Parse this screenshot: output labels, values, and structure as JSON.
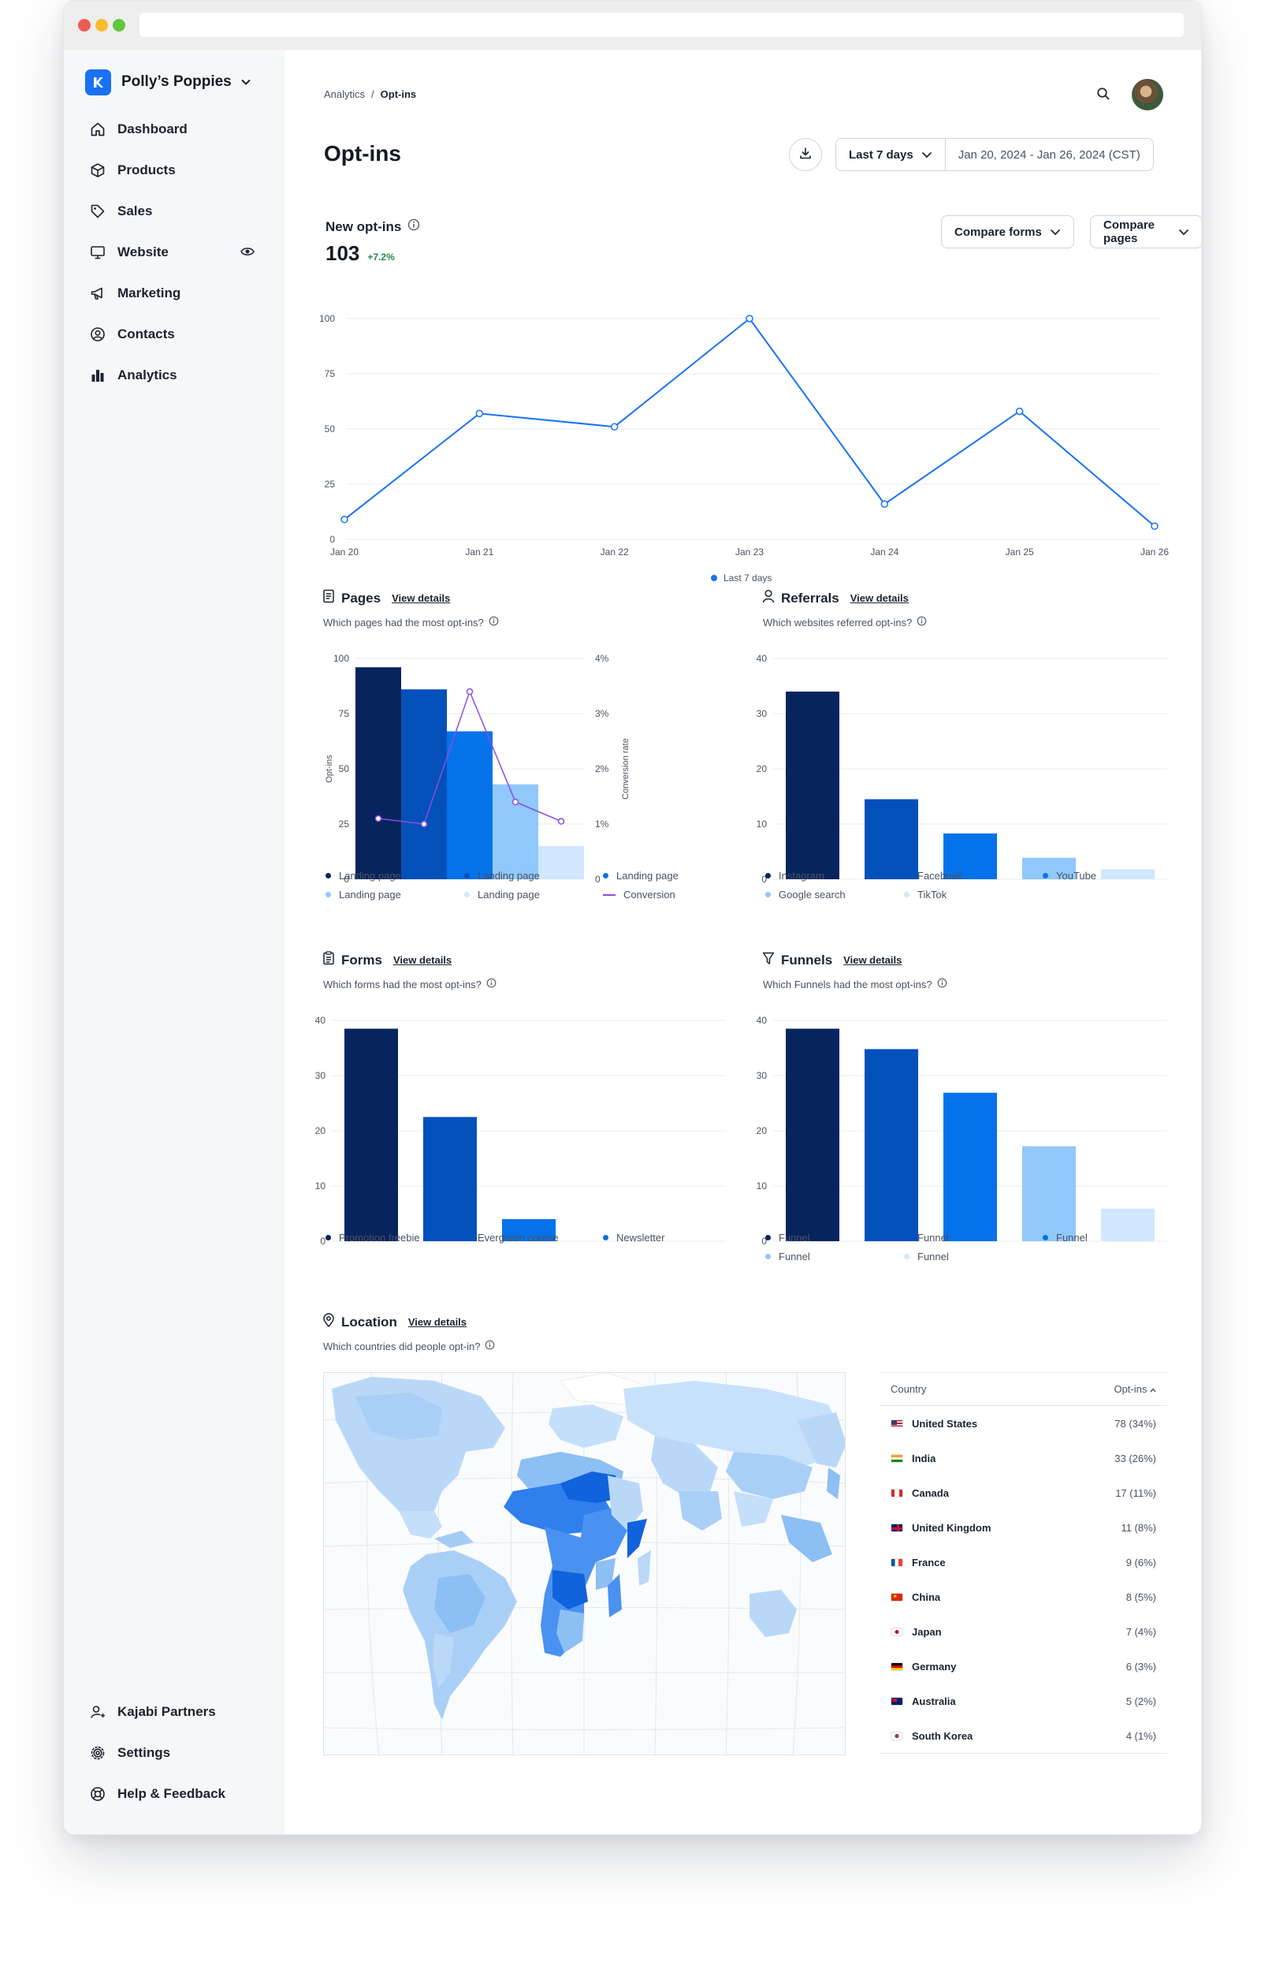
{
  "sidebar": {
    "brand": "Polly’s Poppies",
    "nav": [
      {
        "label": "Dashboard",
        "icon": "home-icon"
      },
      {
        "label": "Products",
        "icon": "box-icon"
      },
      {
        "label": "Sales",
        "icon": "tag-icon"
      },
      {
        "label": "Website",
        "icon": "monitor-icon"
      },
      {
        "label": "Marketing",
        "icon": "megaphone-icon"
      },
      {
        "label": "Contacts",
        "icon": "contact-icon"
      },
      {
        "label": "Analytics",
        "icon": "bar-chart-icon"
      }
    ],
    "bottom": [
      {
        "label": "Kajabi Partners",
        "icon": "partner-icon"
      },
      {
        "label": "Settings",
        "icon": "gear-icon"
      },
      {
        "label": "Help & Feedback",
        "icon": "lifebuoy-icon"
      }
    ]
  },
  "breadcrumb": {
    "parent": "Analytics",
    "sep": "/",
    "current": "Opt-ins"
  },
  "page": {
    "title": "Opt-ins"
  },
  "toolbar": {
    "range_label": "Last 7 days",
    "dates": "Jan 20, 2024 - Jan 26, 2024 (CST)",
    "compare_forms": "Compare forms",
    "compare_pages": "Compare pages"
  },
  "kpi": {
    "title": "New opt-ins",
    "value": "103",
    "change": "+7.2%"
  },
  "colors": {
    "navy": "#07245e",
    "royal": "#0450bb",
    "blue": "#0672ea",
    "light": "#90c8fb",
    "pale": "#d0e7fd",
    "purple": "#8a4ee0",
    "accent": "#1971f5",
    "positive": "#22884c"
  },
  "sections": {
    "pages": {
      "title": "Pages",
      "view": "View details",
      "subtitle": "Which pages had the most opt-ins?"
    },
    "referrals": {
      "title": "Referrals",
      "view": "View details",
      "subtitle": "Which websites referred opt-ins?"
    },
    "forms": {
      "title": "Forms",
      "view": "View details",
      "subtitle": "Which forms had the most opt-ins?"
    },
    "funnels": {
      "title": "Funnels",
      "view": "View details",
      "subtitle": "Which Funnels had the most opt-ins?"
    },
    "location": {
      "title": "Location",
      "view": "View details",
      "subtitle": "Which countries did people opt-in?"
    }
  },
  "chart_data": [
    {
      "id": "new-optins",
      "type": "line",
      "categories": [
        "Jan 20",
        "Jan 21",
        "Jan 22",
        "Jan 23",
        "Jan 24",
        "Jan 25",
        "Jan 26"
      ],
      "series": [
        {
          "name": "Last 7 days",
          "values": [
            9,
            57,
            51,
            100,
            16,
            58,
            6
          ]
        }
      ],
      "ylim": [
        0,
        100
      ],
      "yticks": [
        0,
        25,
        50,
        75,
        100
      ],
      "grid": true,
      "legend": "bottom-center"
    },
    {
      "id": "pages",
      "type": "bar",
      "categories": [
        "Landing page",
        "Landing page",
        "Landing page",
        "Landing page",
        "Landing page"
      ],
      "values": [
        96,
        86,
        67,
        43,
        15
      ],
      "ylabel": "Opt-ins",
      "ylim": [
        0,
        100
      ],
      "yticks": [
        0,
        25,
        50,
        75,
        100
      ],
      "secondary": {
        "name": "Conversion",
        "ylabel": "Conversion rate",
        "values": [
          1.1,
          1.0,
          3.4,
          1.4,
          1.05
        ],
        "ylim": [
          0,
          4
        ],
        "yticks": [
          "0",
          "1%",
          "2%",
          "3%",
          "4%"
        ]
      },
      "legend": [
        {
          "label": "Landing page",
          "kind": "dot"
        },
        {
          "label": "Landing page",
          "kind": "dot"
        },
        {
          "label": "Landing page",
          "kind": "dot"
        },
        {
          "label": "Landing page",
          "kind": "dot"
        },
        {
          "label": "Landing page",
          "kind": "dot"
        },
        {
          "label": "Conversion",
          "kind": "line"
        }
      ]
    },
    {
      "id": "referrals",
      "type": "bar",
      "categories": [
        "Instagram",
        "Facebook",
        "YouTube",
        "Google search",
        "TikTok"
      ],
      "values": [
        34,
        14.5,
        8.3,
        3.9,
        1.8
      ],
      "ylim": [
        0,
        40
      ],
      "yticks": [
        0,
        10,
        20,
        30,
        40
      ],
      "legend": [
        {
          "label": "Instagram"
        },
        {
          "label": "Facebook"
        },
        {
          "label": "YouTube"
        },
        {
          "label": "Google search"
        },
        {
          "label": "TikTok"
        }
      ]
    },
    {
      "id": "forms",
      "type": "bar",
      "categories": [
        "Promotion freebie",
        "Evergreen course",
        "Newsletter"
      ],
      "values": [
        38.5,
        22.5,
        4
      ],
      "ylim": [
        0,
        40
      ],
      "yticks": [
        0,
        10,
        20,
        30,
        40
      ],
      "legend": [
        {
          "label": "Promotion freebie"
        },
        {
          "label": "Evergreen course"
        },
        {
          "label": "Newsletter"
        }
      ]
    },
    {
      "id": "funnels",
      "type": "bar",
      "categories": [
        "Funnel",
        "Funnel",
        "Funnel",
        "Funnel",
        "Funnel"
      ],
      "values": [
        38.5,
        34.8,
        26.9,
        17.2,
        5.9
      ],
      "ylim": [
        0,
        40
      ],
      "yticks": [
        0,
        10,
        20,
        30,
        40
      ],
      "legend": [
        {
          "label": "Funnel"
        },
        {
          "label": "Funnel"
        },
        {
          "label": "Funnel"
        },
        {
          "label": "Funnel"
        },
        {
          "label": "Funnel"
        }
      ]
    },
    {
      "id": "location",
      "type": "table",
      "columns": [
        "Country",
        "Opt-ins"
      ],
      "rows": [
        {
          "country": "United States",
          "value": "78 (34%)",
          "flag": "flag-us"
        },
        {
          "country": "India",
          "value": "33 (26%)",
          "flag": "flag-in"
        },
        {
          "country": "Canada",
          "value": "17 (11%)",
          "flag": "flag-ca"
        },
        {
          "country": "United Kingdom",
          "value": "11 (8%)",
          "flag": "flag-gb"
        },
        {
          "country": "France",
          "value": "9 (6%)",
          "flag": "flag-fr"
        },
        {
          "country": "China",
          "value": "8 (5%)",
          "flag": "flag-cn"
        },
        {
          "country": "Japan",
          "value": "7 (4%)",
          "flag": "flag-jp"
        },
        {
          "country": "Germany",
          "value": "6 (3%)",
          "flag": "flag-de"
        },
        {
          "country": "Australia",
          "value": "5 (2%)",
          "flag": "flag-au"
        },
        {
          "country": "South Korea",
          "value": "4 (1%)",
          "flag": "flag-kr"
        }
      ]
    }
  ]
}
